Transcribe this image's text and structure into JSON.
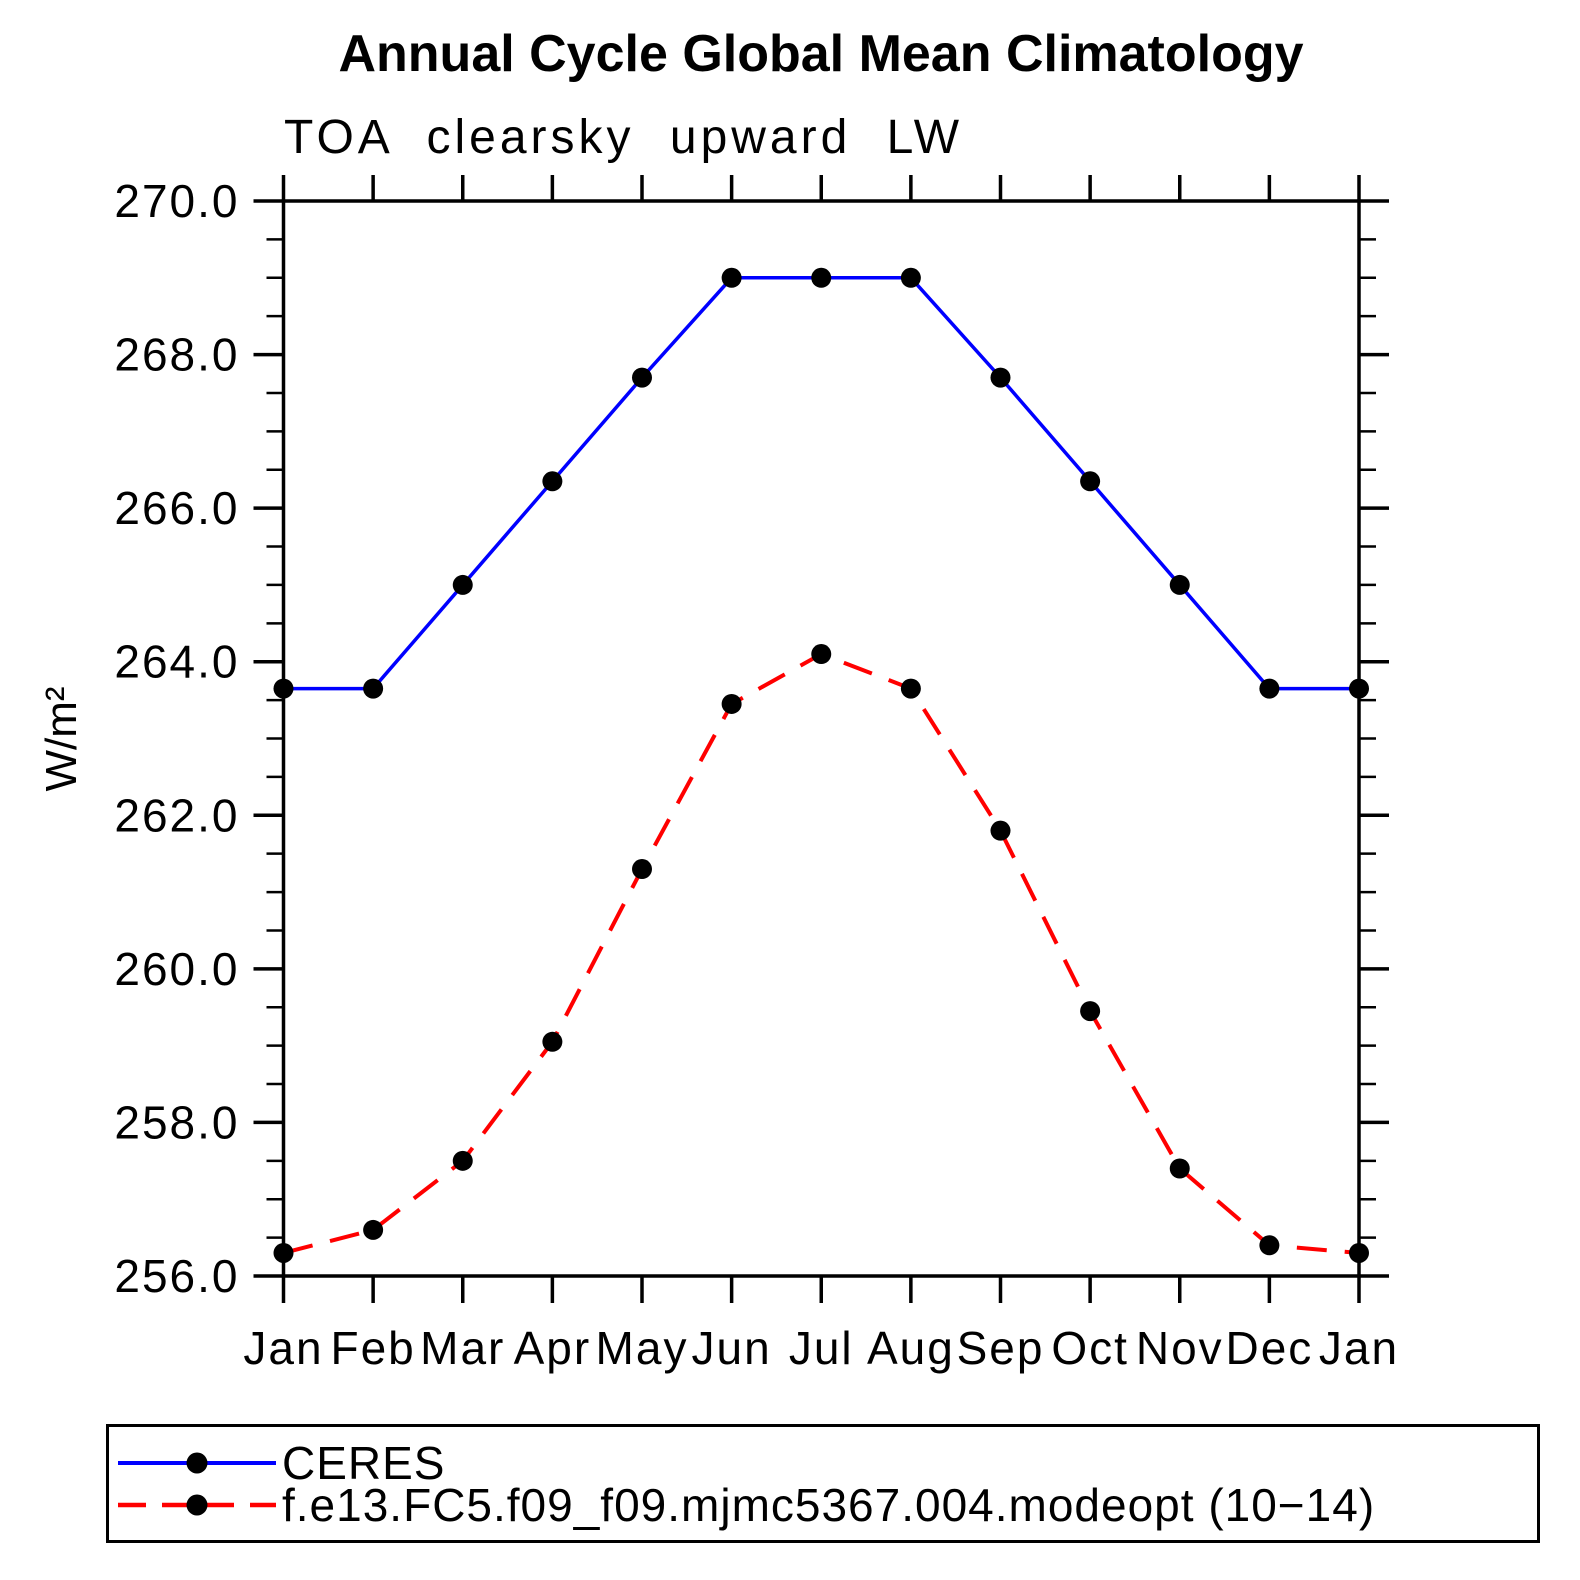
{
  "chart_data": {
    "type": "line",
    "title": "Annual Cycle Global Mean Climatology",
    "subtitle": "TOA clearsky upward LW",
    "ylabel": "W/m²",
    "xlabel": "",
    "categories": [
      "Jan",
      "Feb",
      "Mar",
      "Apr",
      "May",
      "Jun",
      "Jul",
      "Aug",
      "Sep",
      "Oct",
      "Nov",
      "Dec",
      "Jan"
    ],
    "ylim": [
      256.0,
      270.0
    ],
    "y_major_step": 2.0,
    "y_minor_step": 0.5,
    "y_tick_values": [
      256.0,
      258.0,
      260.0,
      262.0,
      264.0,
      266.0,
      268.0,
      270.0
    ],
    "y_tick_labels": [
      "256.0",
      "258.0",
      "260.0",
      "262.0",
      "264.0",
      "266.0",
      "268.0",
      "270.0"
    ],
    "grid": false,
    "legend_position": "bottom-left box",
    "axis_color": "#000000",
    "marker_shape": "filled-circle",
    "series": [
      {
        "name": "CERES",
        "color": "#0000ff",
        "line_style": "solid",
        "marker_color": "#000000",
        "values": [
          263.65,
          263.65,
          265.0,
          266.35,
          267.7,
          269.0,
          269.0,
          269.0,
          267.7,
          266.35,
          265.0,
          263.65,
          263.65
        ]
      },
      {
        "name": "f.e13.FC5.f09_f09.mjmc5367.004.modeopt (10−14)",
        "color": "#ff0000",
        "line_style": "dashed",
        "marker_color": "#000000",
        "values": [
          256.3,
          256.6,
          257.5,
          259.05,
          261.3,
          263.45,
          264.1,
          263.65,
          261.8,
          259.45,
          257.4,
          256.4,
          256.3
        ]
      }
    ]
  }
}
